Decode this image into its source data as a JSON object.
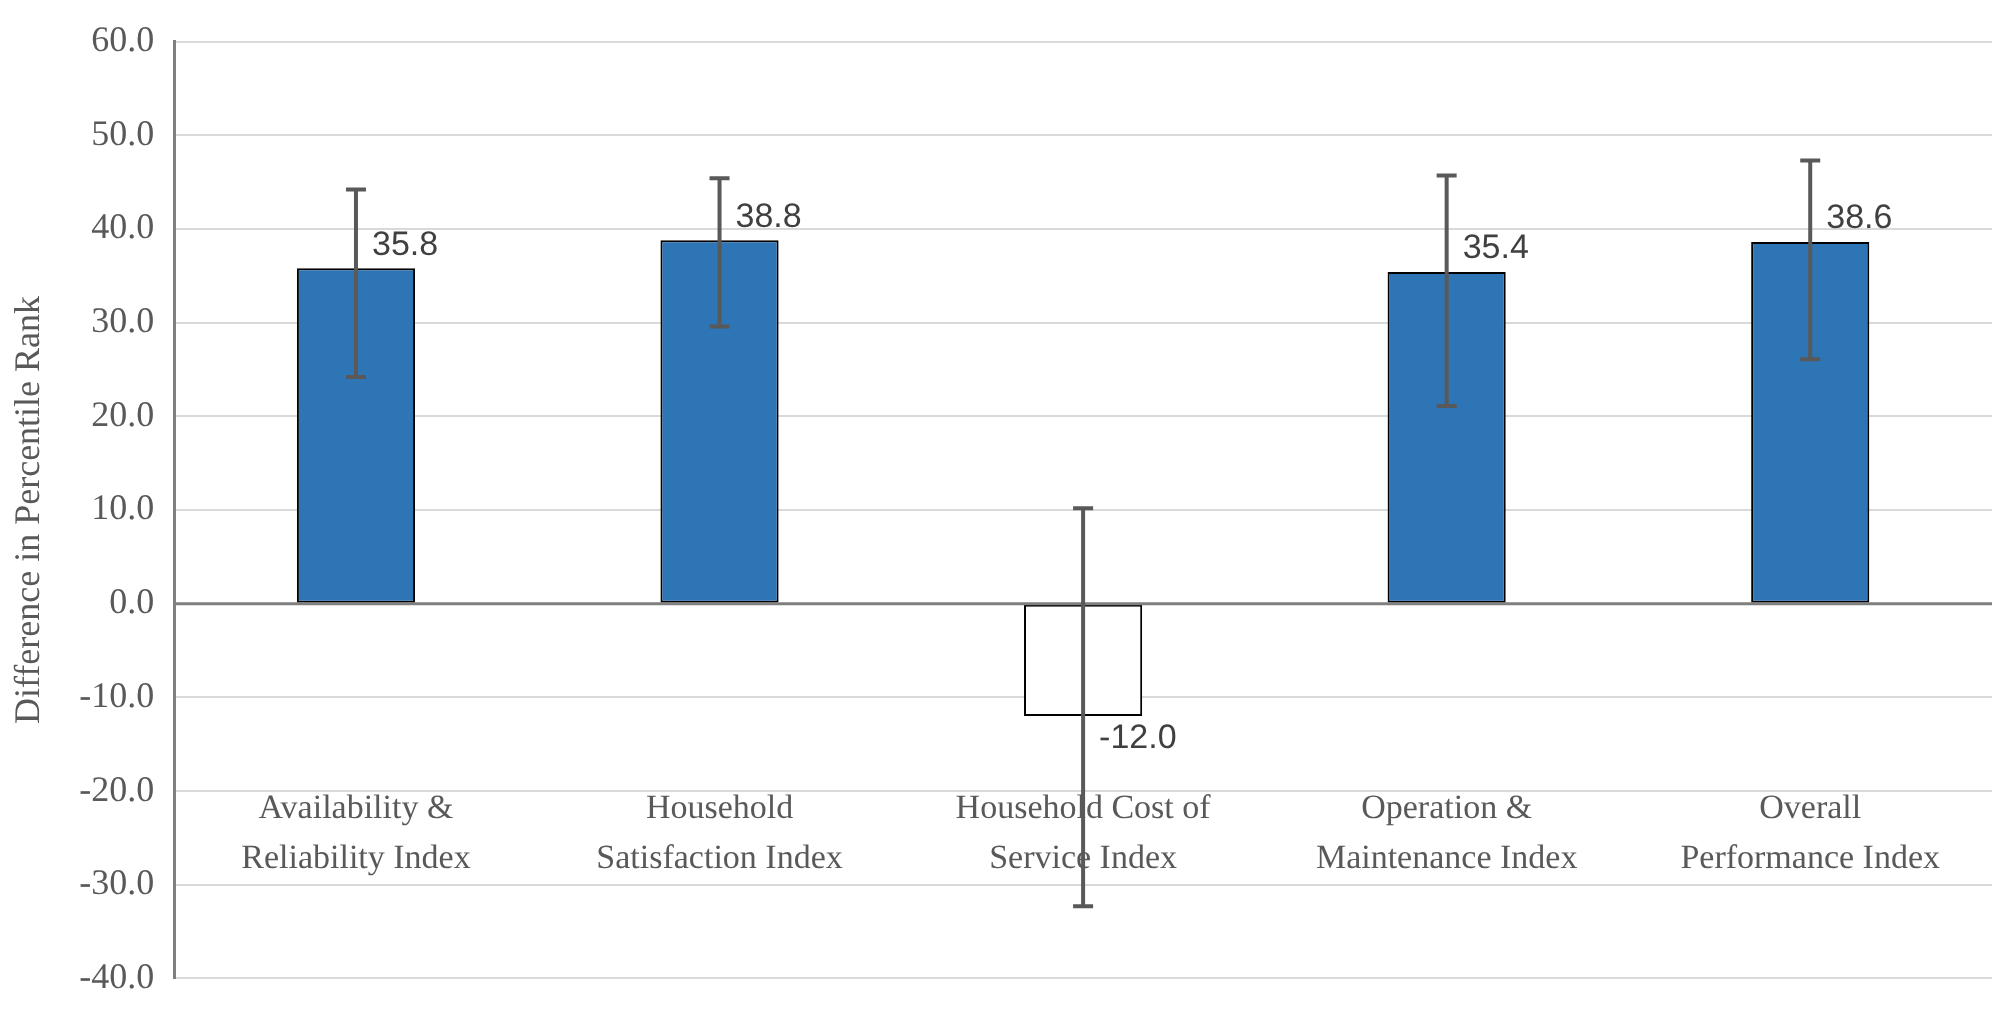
{
  "chart_data": {
    "type": "bar",
    "ylabel": "Difference in Percentile Rank",
    "categories": [
      "Availability & Reliability Index",
      "Household Satisfaction Index",
      "Household Cost of Service Index",
      "Operation & Maintenance Index",
      "Overall Performance Index"
    ],
    "values": [
      35.8,
      38.8,
      -12.0,
      35.4,
      38.6
    ],
    "colors": [
      "#2e75b6",
      "#2e75b6",
      "#ffffff",
      "#2e75b6",
      "#2e75b6"
    ],
    "errors": [
      [
        24.2,
        44.2
      ],
      [
        29.6,
        45.4
      ],
      [
        -32.3,
        10.2
      ],
      [
        21.1,
        45.7
      ],
      [
        26.1,
        47.3
      ]
    ],
    "value_labels": [
      "35.8",
      "38.8",
      "-12.0",
      "35.4",
      "38.6"
    ],
    "ylim": [
      -40,
      60
    ],
    "yticks": [
      {
        "value": 60,
        "label": "60.0"
      },
      {
        "value": 50,
        "label": "50.0"
      },
      {
        "value": 40,
        "label": "40.0"
      },
      {
        "value": 30,
        "label": "30.0"
      },
      {
        "value": 20,
        "label": "20.0"
      },
      {
        "value": 10,
        "label": "10.0"
      },
      {
        "value": 0,
        "label": "0.0"
      },
      {
        "value": -10,
        "label": "-10.0"
      },
      {
        "value": -20,
        "label": "-20.0"
      },
      {
        "value": -30,
        "label": "-30.0"
      },
      {
        "value": -40,
        "label": "-40.0"
      }
    ],
    "grid": "y",
    "legend": false
  }
}
